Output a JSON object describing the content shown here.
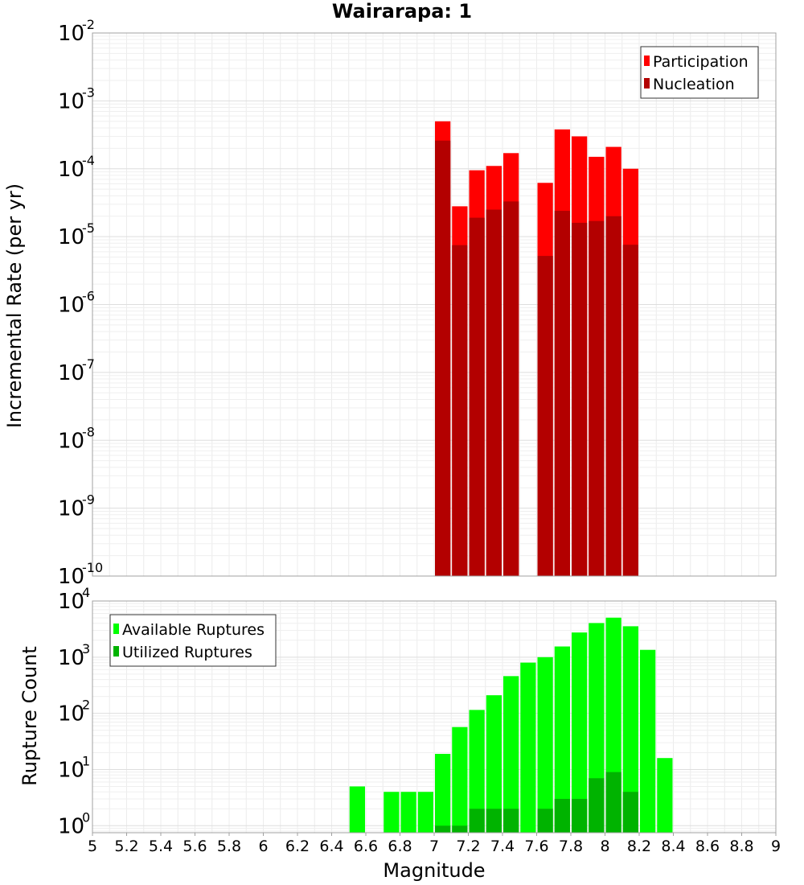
{
  "figure": {
    "title": "Wairarapa: 1",
    "xlabel": "Magnitude"
  },
  "chart_data": [
    {
      "type": "bar",
      "panel": "top",
      "ylabel": "Incremental Rate (per yr)",
      "xlim": [
        5,
        9
      ],
      "ylim": [
        1e-10,
        0.01
      ],
      "yscale": "log",
      "grid": true,
      "legend_position": "top-right",
      "bin_width": 0.1,
      "ytick_exponents": [
        "-10",
        "-9",
        "-8",
        "-7",
        "-6",
        "-5",
        "-4",
        "-3",
        "-2"
      ],
      "series": [
        {
          "name": "Participation",
          "color": "#ff0000",
          "x": [
            7.05,
            7.15,
            7.25,
            7.35,
            7.45,
            7.65,
            7.75,
            7.85,
            7.95,
            8.05,
            8.15
          ],
          "values": [
            0.0005,
            2.8e-05,
            9.5e-05,
            0.00011,
            0.00017,
            6.2e-05,
            0.00038,
            0.0003,
            0.00015,
            0.00021,
            0.0001
          ]
        },
        {
          "name": "Nucleation",
          "color": "#b30000",
          "x": [
            7.05,
            7.15,
            7.25,
            7.35,
            7.45,
            7.65,
            7.75,
            7.85,
            7.95,
            8.05,
            8.15
          ],
          "values": [
            0.00026,
            7.5e-06,
            1.9e-05,
            2.5e-05,
            3.3e-05,
            5.2e-06,
            2.4e-05,
            1.6e-05,
            1.7e-05,
            2e-05,
            7.6e-06
          ]
        }
      ]
    },
    {
      "type": "bar",
      "panel": "bottom",
      "ylabel": "Rupture Count",
      "xlim": [
        5,
        9
      ],
      "ylim": [
        0.75,
        10000
      ],
      "yscale": "log",
      "grid": true,
      "legend_position": "top-left",
      "bin_width": 0.1,
      "ytick_exponents": [
        "0",
        "1",
        "2",
        "3",
        "4"
      ],
      "series": [
        {
          "name": "Available Ruptures",
          "color": "#00ff00",
          "x": [
            6.55,
            6.75,
            6.85,
            6.95,
            7.05,
            7.15,
            7.25,
            7.35,
            7.45,
            7.55,
            7.65,
            7.75,
            7.85,
            7.95,
            8.05,
            8.15,
            8.25,
            8.35
          ],
          "values": [
            5,
            4,
            4,
            4,
            19,
            57,
            115,
            210,
            460,
            800,
            1000,
            1550,
            2750,
            4050,
            5050,
            3550,
            1350,
            16
          ]
        },
        {
          "name": "Utilized Ruptures",
          "color": "#00b300",
          "x": [
            7.05,
            7.15,
            7.25,
            7.35,
            7.45,
            7.65,
            7.75,
            7.85,
            7.95,
            8.05,
            8.15
          ],
          "values": [
            1,
            1,
            2,
            2,
            2,
            2,
            3,
            3,
            7,
            9,
            4
          ]
        }
      ]
    }
  ],
  "xticks": [
    "5",
    "5.2",
    "5.4",
    "5.6",
    "5.8",
    "6",
    "6.2",
    "6.4",
    "6.6",
    "6.8",
    "7",
    "7.2",
    "7.4",
    "7.6",
    "7.8",
    "8",
    "8.2",
    "8.4",
    "8.6",
    "8.8",
    "9"
  ]
}
